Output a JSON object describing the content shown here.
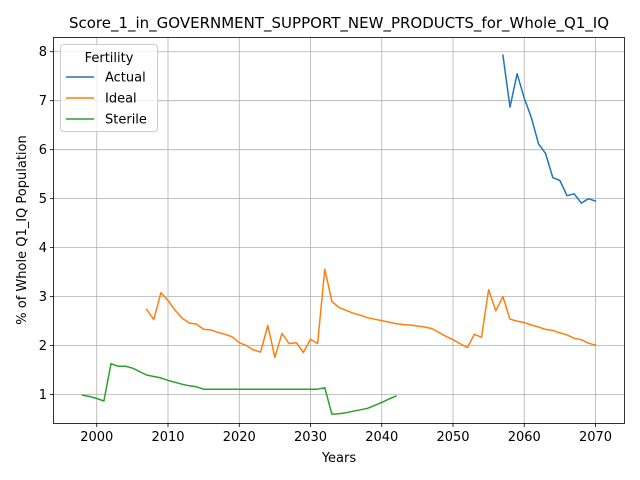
{
  "chart_data": {
    "type": "line",
    "title": "Score_1_in_GOVERNMENT_SUPPORT_NEW_PRODUCTS_for_Whole_Q1_IQ",
    "xlabel": "Years",
    "ylabel": "% of Whole Q1_IQ Population",
    "xlim": [
      1994,
      2074
    ],
    "ylim": [
      0.42,
      8.28
    ],
    "xticks": [
      2000,
      2010,
      2020,
      2030,
      2040,
      2050,
      2060,
      2070
    ],
    "yticks": [
      1,
      2,
      3,
      4,
      5,
      6,
      7,
      8
    ],
    "grid": true,
    "legend": {
      "title": "Fertility",
      "placement": "top-left"
    },
    "series": [
      {
        "name": "Actual",
        "color": "#1f77b4",
        "x": [
          2057,
          2058,
          2059,
          2060,
          2061,
          2062,
          2063,
          2064,
          2065,
          2066,
          2067,
          2068,
          2069,
          2070
        ],
        "y": [
          7.93,
          6.87,
          7.55,
          7.05,
          6.65,
          6.12,
          5.92,
          5.43,
          5.37,
          5.06,
          5.1,
          4.91,
          5.0,
          4.95
        ]
      },
      {
        "name": "Ideal",
        "color": "#ff7f0e",
        "x": [
          2007,
          2008,
          2009,
          2010,
          2011,
          2012,
          2013,
          2014,
          2015,
          2016,
          2017,
          2018,
          2019,
          2020,
          2021,
          2022,
          2023,
          2024,
          2025,
          2026,
          2027,
          2028,
          2029,
          2030,
          2031,
          2032,
          2033,
          2034,
          2035,
          2036,
          2037,
          2038,
          2039,
          2040,
          2041,
          2042,
          2043,
          2044,
          2045,
          2046,
          2047,
          2048,
          2049,
          2050,
          2051,
          2052,
          2053,
          2054,
          2055,
          2056,
          2057,
          2058,
          2059,
          2060,
          2061,
          2062,
          2063,
          2064,
          2065,
          2066,
          2067,
          2068,
          2069,
          2070
        ],
        "y": [
          2.74,
          2.53,
          3.08,
          2.92,
          2.72,
          2.56,
          2.46,
          2.44,
          2.33,
          2.32,
          2.27,
          2.23,
          2.18,
          2.06,
          2.0,
          1.91,
          1.87,
          2.41,
          1.76,
          2.25,
          2.04,
          2.06,
          1.86,
          2.13,
          2.04,
          3.56,
          2.9,
          2.78,
          2.72,
          2.66,
          2.62,
          2.57,
          2.54,
          2.51,
          2.48,
          2.45,
          2.43,
          2.42,
          2.4,
          2.38,
          2.35,
          2.27,
          2.19,
          2.12,
          2.04,
          1.96,
          2.23,
          2.17,
          3.14,
          2.71,
          3.0,
          2.54,
          2.5,
          2.47,
          2.42,
          2.38,
          2.33,
          2.31,
          2.26,
          2.22,
          2.15,
          2.12,
          2.05,
          2.01
        ]
      },
      {
        "name": "Sterile",
        "color": "#2ca02c",
        "x": [
          1998,
          1999,
          2000,
          2001,
          2002,
          2003,
          2004,
          2005,
          2006,
          2007,
          2008,
          2009,
          2010,
          2011,
          2012,
          2013,
          2014,
          2015,
          2016,
          2017,
          2018,
          2019,
          2020,
          2021,
          2022,
          2023,
          2024,
          2025,
          2026,
          2027,
          2028,
          2029,
          2030,
          2031,
          2032,
          2033,
          2034,
          2035,
          2036,
          2037,
          2038,
          2039,
          2040,
          2041,
          2042
        ],
        "y": [
          0.99,
          0.96,
          0.92,
          0.87,
          1.63,
          1.58,
          1.58,
          1.54,
          1.47,
          1.4,
          1.37,
          1.34,
          1.29,
          1.25,
          1.21,
          1.18,
          1.16,
          1.11,
          1.11,
          1.11,
          1.11,
          1.11,
          1.11,
          1.11,
          1.11,
          1.11,
          1.11,
          1.11,
          1.11,
          1.11,
          1.11,
          1.11,
          1.11,
          1.11,
          1.14,
          0.6,
          0.61,
          0.63,
          0.66,
          0.69,
          0.72,
          0.78,
          0.84,
          0.91,
          0.97
        ]
      }
    ]
  }
}
